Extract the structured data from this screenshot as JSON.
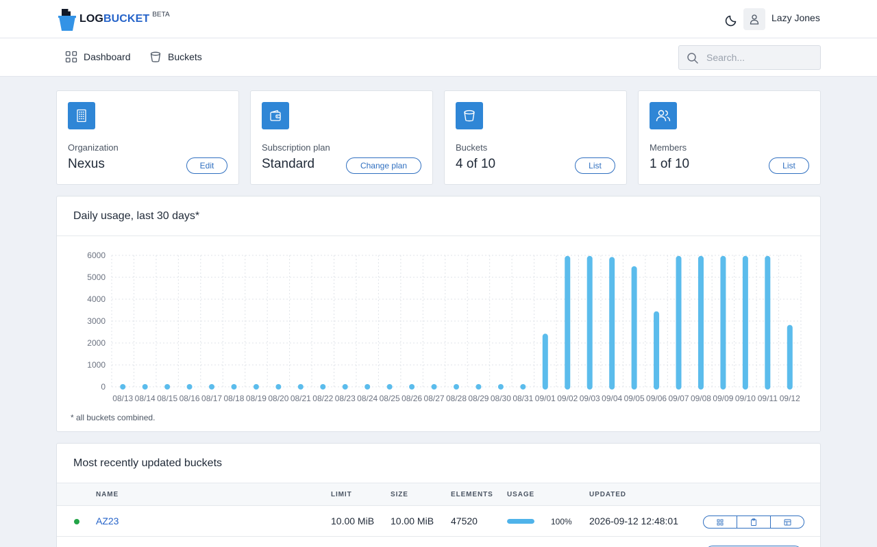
{
  "app": {
    "logo_part1": "LOG",
    "logo_part2": "BUCKET",
    "logo_badge": "BETA",
    "user_name": "Lazy Jones"
  },
  "nav": {
    "dashboard_label": "Dashboard",
    "buckets_label": "Buckets",
    "search_placeholder": "Search..."
  },
  "stats": [
    {
      "label": "Organization",
      "value": "Nexus",
      "button": "Edit",
      "icon": "building-icon"
    },
    {
      "label": "Subscription plan",
      "value": "Standard",
      "button": "Change plan",
      "icon": "wallet-icon"
    },
    {
      "label": "Buckets",
      "value": "4 of 10",
      "button": "List",
      "icon": "bucket-icon"
    },
    {
      "label": "Members",
      "value": "1 of 10",
      "button": "List",
      "icon": "users-icon"
    }
  ],
  "usage_chart": {
    "title": "Daily usage, last 30 days*",
    "footnote": "* all buckets combined."
  },
  "chart_data": {
    "type": "bar",
    "title": "Daily usage, last 30 days*",
    "xlabel": "",
    "ylabel": "",
    "ylim": [
      0,
      6000
    ],
    "yticks": [
      0,
      1000,
      2000,
      3000,
      4000,
      5000,
      6000
    ],
    "grid": true,
    "categories": [
      "08/13",
      "08/14",
      "08/15",
      "08/16",
      "08/17",
      "08/18",
      "08/19",
      "08/20",
      "08/21",
      "08/22",
      "08/23",
      "08/24",
      "08/25",
      "08/26",
      "08/27",
      "08/28",
      "08/29",
      "08/30",
      "08/31",
      "09/01",
      "09/02",
      "09/03",
      "09/04",
      "09/05",
      "09/06",
      "09/07",
      "09/08",
      "09/09",
      "09/10",
      "09/11",
      "09/12"
    ],
    "values": [
      0,
      0,
      0,
      0,
      0,
      0,
      0,
      0,
      0,
      0,
      0,
      0,
      0,
      0,
      0,
      0,
      0,
      0,
      0,
      2300,
      5850,
      5850,
      5800,
      5380,
      3320,
      5850,
      5850,
      5850,
      5850,
      5850,
      2700
    ],
    "color": "#5bbcec"
  },
  "recent_buckets": {
    "title": "Most recently updated buckets",
    "columns": [
      "NAME",
      "LIMIT",
      "SIZE",
      "ELEMENTS",
      "USAGE",
      "UPDATED"
    ],
    "rows": [
      {
        "status": "active",
        "status_color": "#22a447",
        "name": "AZ23",
        "limit": "10.00 MiB",
        "size": "10.00 MiB",
        "elements": "47520",
        "usage_fraction": 1.0,
        "usage_label": "100%",
        "updated": "2026-09-12 12:48:01"
      }
    ]
  },
  "colors": {
    "accent": "#2f86d6",
    "link": "#2563c9",
    "bar": "#5bbcec"
  }
}
